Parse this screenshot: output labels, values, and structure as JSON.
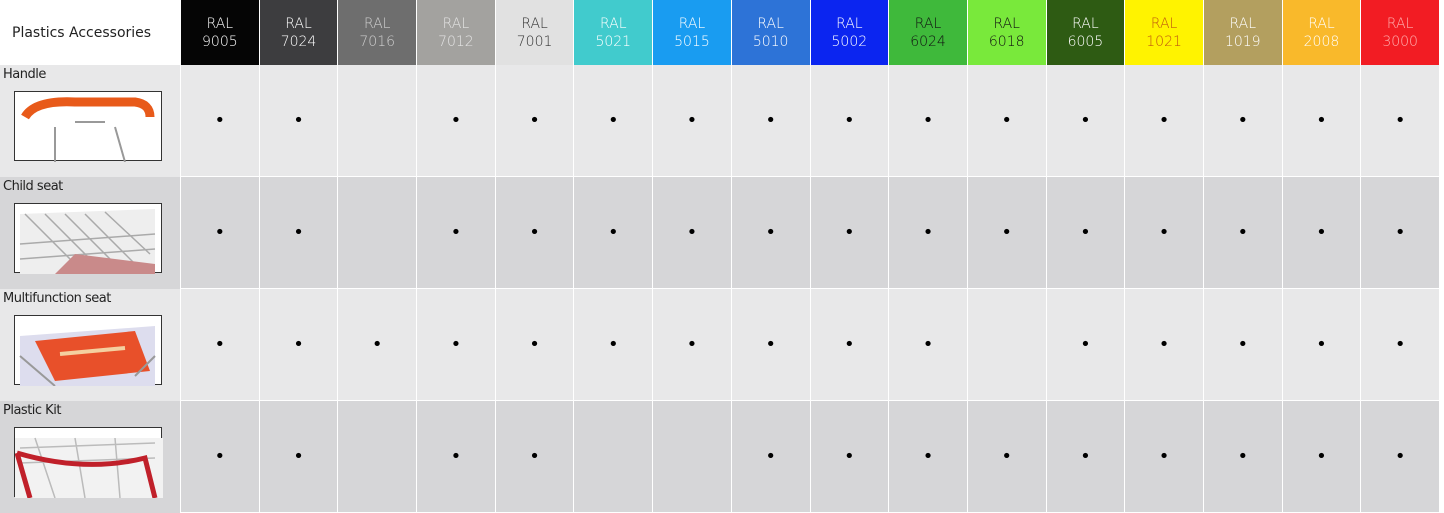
{
  "table": {
    "corner": "Plastics Accessories",
    "columns": [
      {
        "label": "RAL",
        "code": "9005",
        "color": "#050505",
        "text_color": "#ffffff"
      },
      {
        "label": "RAL",
        "code": "7024",
        "color": "#3d3d3f",
        "text_color": "#ffffff"
      },
      {
        "label": "RAL",
        "code": "7016",
        "color": "#6e6e6e",
        "text_color": "#cfcfcf"
      },
      {
        "label": "RAL",
        "code": "7012",
        "color": "#a3a29f",
        "text_color": "#e4e4e4"
      },
      {
        "label": "RAL",
        "code": "7001",
        "color": "#e1e1e1",
        "text_color": "#333333"
      },
      {
        "label": "RAL",
        "code": "5021",
        "color": "#41cbcd",
        "text_color": "#ffffff"
      },
      {
        "label": "RAL",
        "code": "5015",
        "color": "#199cf1",
        "text_color": "#ffffff"
      },
      {
        "label": "RAL",
        "code": "5010",
        "color": "#2d73d7",
        "text_color": "#ffffff"
      },
      {
        "label": "RAL",
        "code": "5002",
        "color": "#0b25f0",
        "text_color": "#ffffff"
      },
      {
        "label": "RAL",
        "code": "6024",
        "color": "#3fb93b",
        "text_color": "#111111"
      },
      {
        "label": "RAL",
        "code": "6018",
        "color": "#79e93b",
        "text_color": "#111111"
      },
      {
        "label": "RAL",
        "code": "6005",
        "color": "#2e5b13",
        "text_color": "#ffffff"
      },
      {
        "label": "RAL",
        "code": "1021",
        "color": "#fff300",
        "text_color": "#c05a10"
      },
      {
        "label": "RAL",
        "code": "1019",
        "color": "#b39f5f",
        "text_color": "#ffffff"
      },
      {
        "label": "RAL",
        "code": "2008",
        "color": "#f9b92b",
        "text_color": "#ffffff"
      },
      {
        "label": "RAL",
        "code": "3000",
        "color": "#f21c23",
        "text_color": "#ffb0b0"
      }
    ],
    "rows": [
      {
        "name": "Handle",
        "cells": [
          "•",
          "•",
          null,
          "•",
          "•",
          "•",
          "•",
          "•",
          "•",
          "•",
          "•",
          "•",
          "•",
          "•",
          "•",
          "•"
        ]
      },
      {
        "name": "Child seat",
        "cells": [
          "•",
          "•",
          null,
          "•",
          "•",
          "•",
          "•",
          "•",
          "•",
          "•",
          "•",
          "•",
          "•",
          "•",
          "•",
          "•"
        ]
      },
      {
        "name": "Multifunction seat",
        "cells": [
          "•",
          "•",
          "•",
          "•",
          "•",
          "•",
          "•",
          "•",
          "•",
          "•",
          null,
          "•",
          "•",
          "•",
          "•",
          "•"
        ]
      },
      {
        "name": "Plastic Kit",
        "cells": [
          "•",
          "•",
          null,
          "•",
          "•",
          null,
          null,
          "•",
          "•",
          "•",
          "•",
          "•",
          "•",
          "•",
          "•",
          "•"
        ]
      }
    ]
  }
}
